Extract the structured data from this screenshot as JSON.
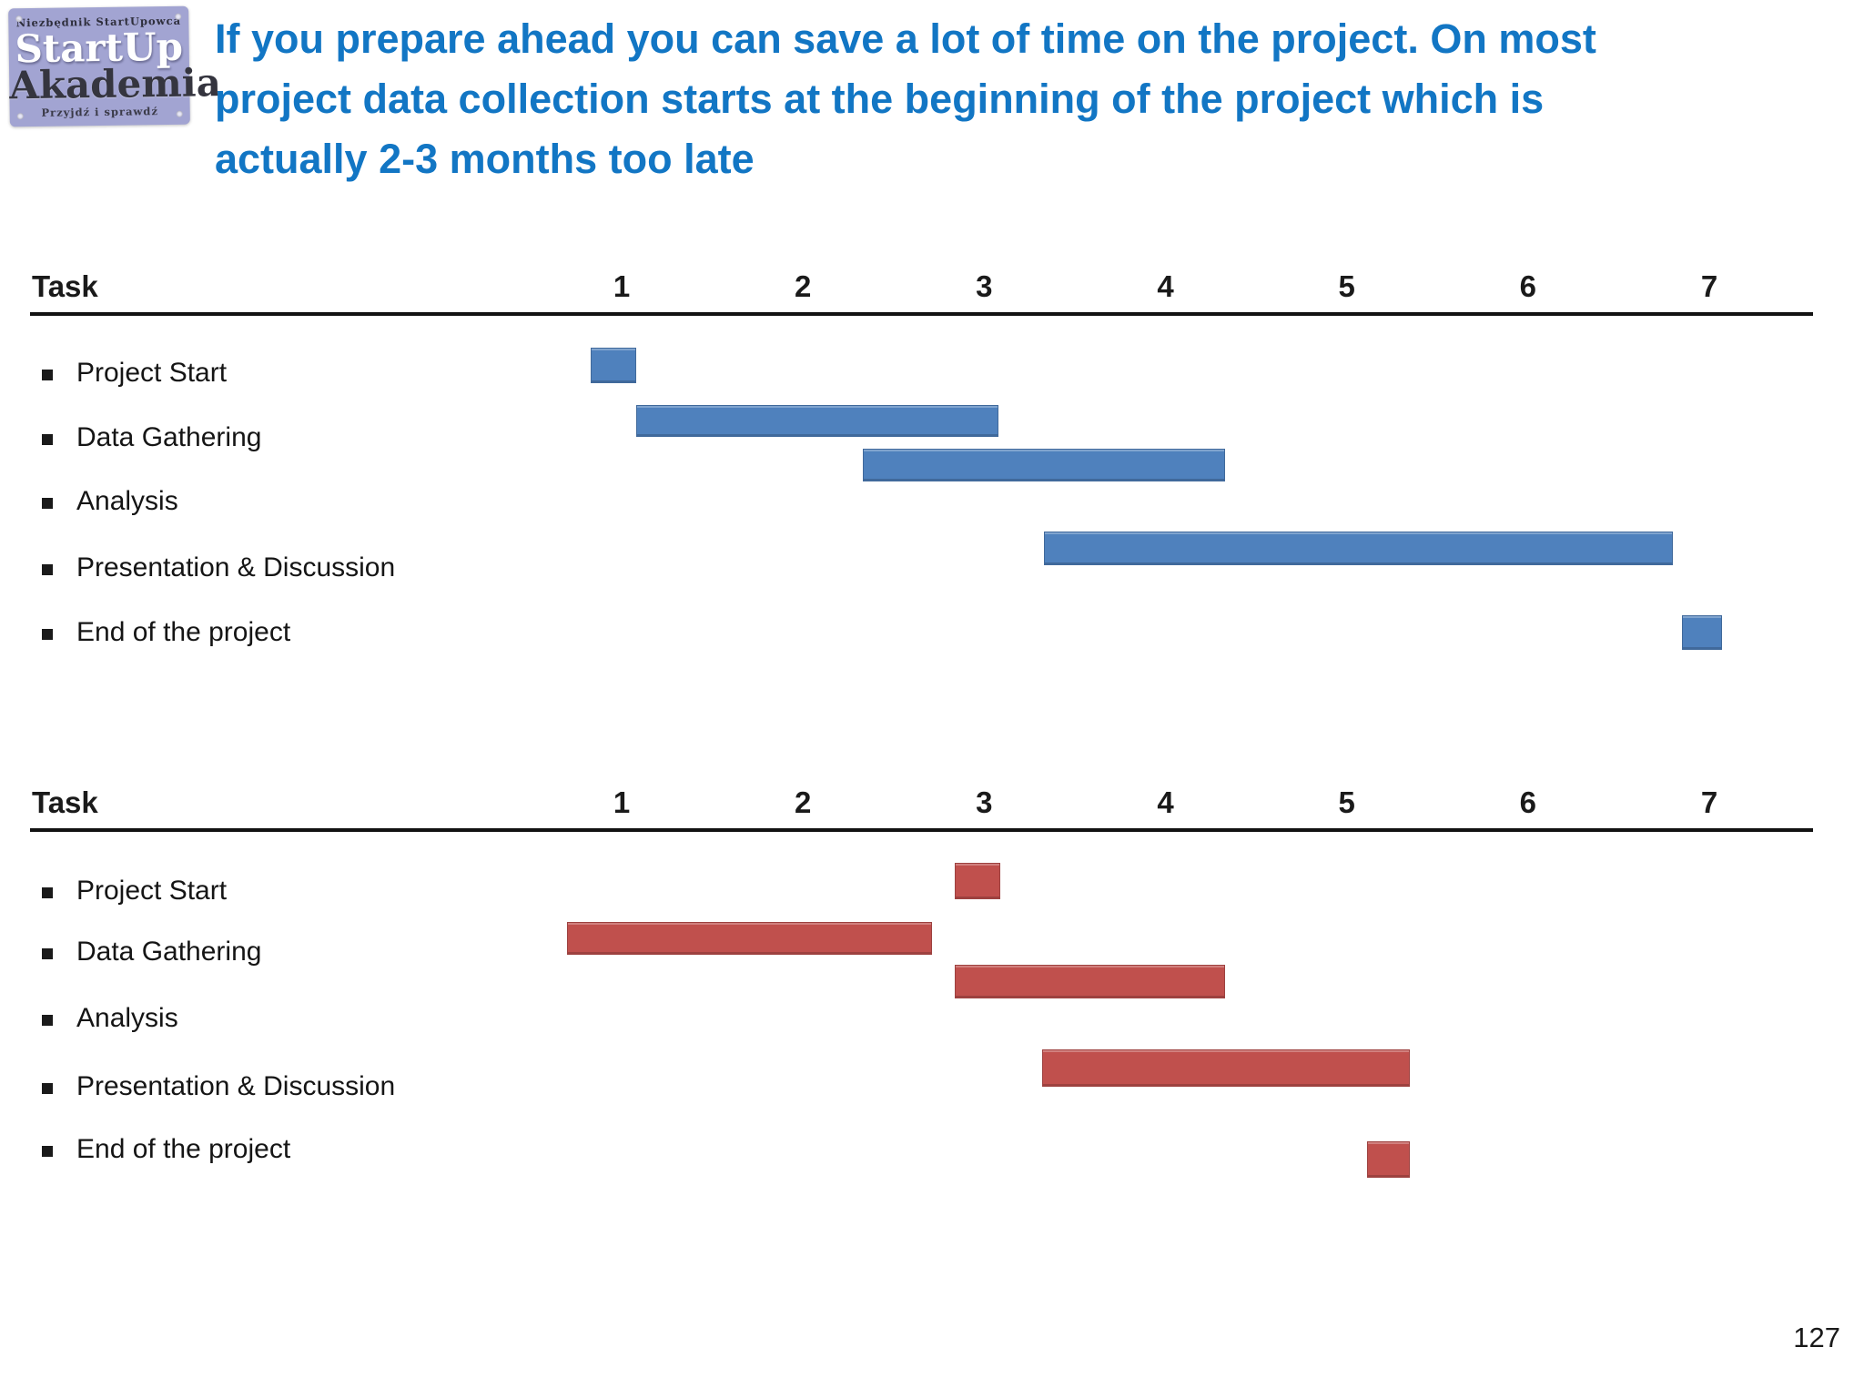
{
  "logo": {
    "top_text": "Niezbędnik StartUpowca",
    "line1": "StartUp",
    "line2": "Akademia",
    "bottom_text": "Przyjdź i sprawdź",
    "bg_color": "#a2a4d2"
  },
  "title": {
    "color": "#1276c4",
    "lines": [
      "If you prepare ahead you can save a lot of time on the project. On most",
      "project data collection starts at the beginning of the project which is",
      "actually 2-3 months too late"
    ]
  },
  "chart_data": [
    {
      "type": "gantt",
      "header_label": "Task",
      "bar_color": "#4f81bd",
      "x_ticks": [
        "1",
        "2",
        "3",
        "4",
        "5",
        "6",
        "7"
      ],
      "x_axis_range": [
        0.5,
        7.5
      ],
      "grid": false,
      "tasks": [
        {
          "label": "Project Start",
          "start": 0.83,
          "end": 1.08
        },
        {
          "label": "Data Gathering",
          "start": 1.08,
          "end": 3.08
        },
        {
          "label": "Analysis",
          "start": 2.33,
          "end": 4.33
        },
        {
          "label": "Presentation & Discussion",
          "start": 3.33,
          "end": 6.8
        },
        {
          "label": "End of the project",
          "start": 6.85,
          "end": 7.07
        }
      ]
    },
    {
      "type": "gantt",
      "header_label": "Task",
      "bar_color": "#c0504d",
      "x_ticks": [
        "1",
        "2",
        "3",
        "4",
        "5",
        "6",
        "7"
      ],
      "x_axis_range": [
        0.5,
        7.5
      ],
      "grid": false,
      "tasks": [
        {
          "label": "Project Start",
          "start": 2.84,
          "end": 3.09
        },
        {
          "label": "Data Gathering",
          "start": 0.7,
          "end": 2.71
        },
        {
          "label": "Analysis",
          "start": 2.84,
          "end": 4.33
        },
        {
          "label": "Presentation & Discussion",
          "start": 3.32,
          "end": 5.35
        },
        {
          "label": "End of the project",
          "start": 5.11,
          "end": 5.35
        }
      ]
    }
  ],
  "page": {
    "page_number": "127"
  }
}
